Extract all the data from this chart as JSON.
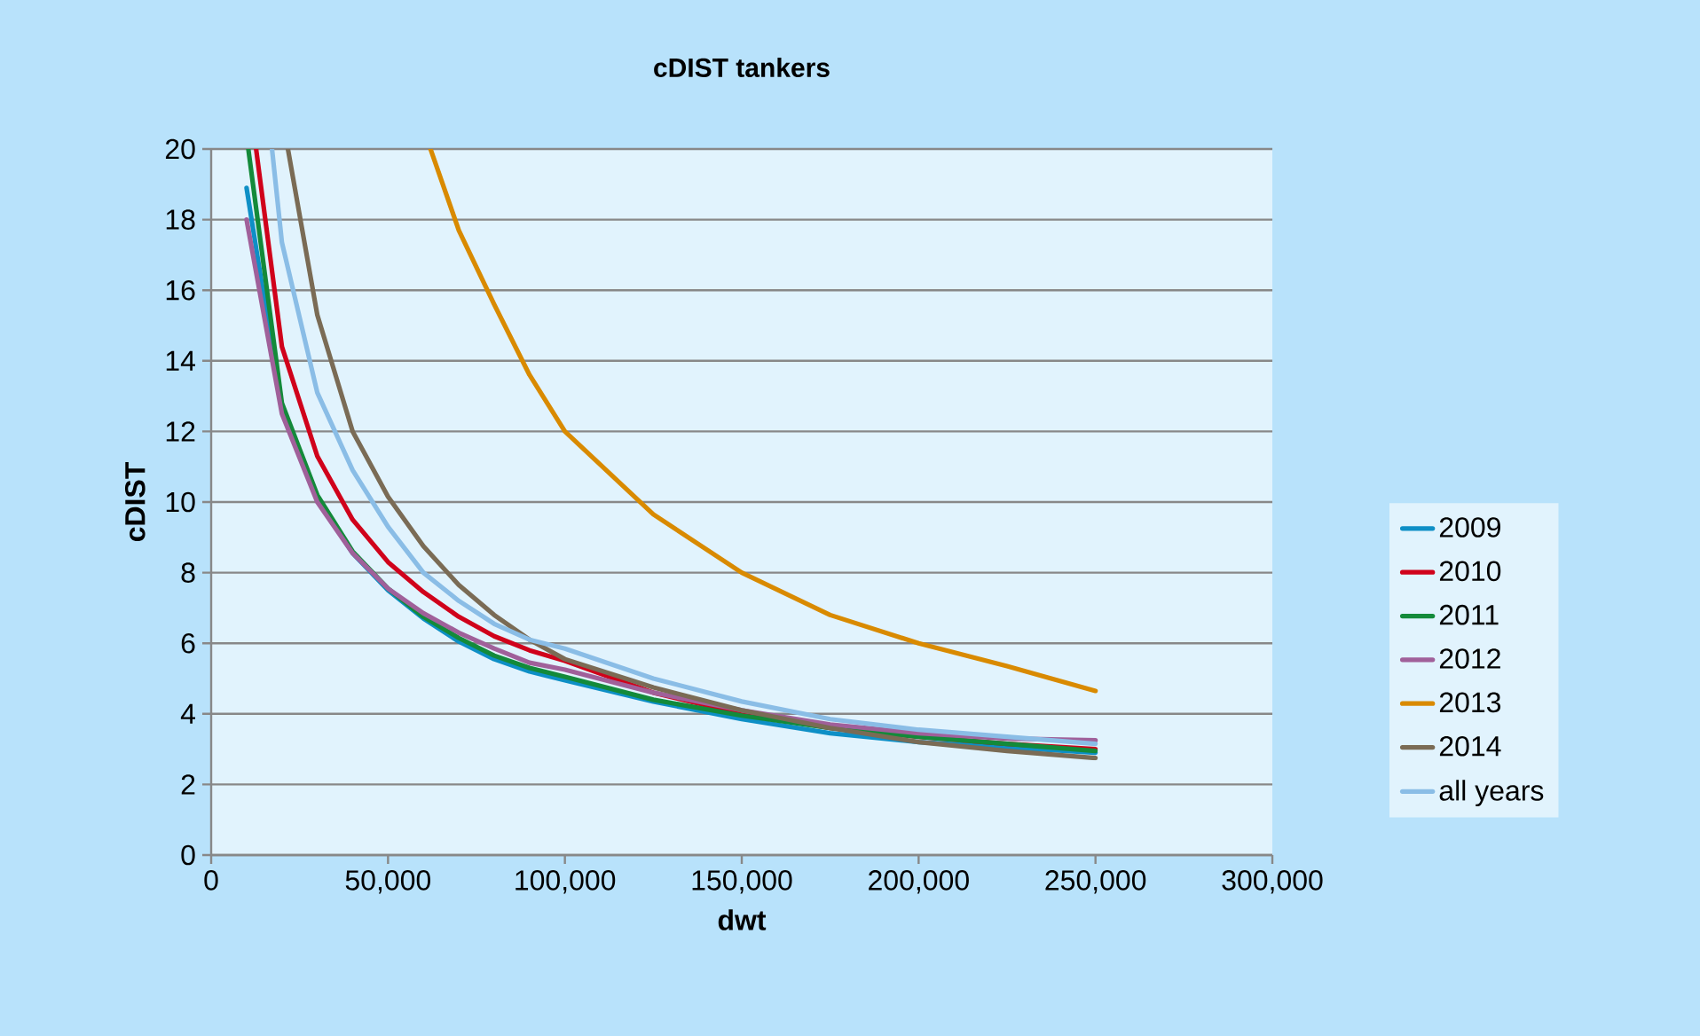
{
  "chart_data": {
    "type": "line",
    "title": "cDIST tankers",
    "xlabel": "dwt",
    "ylabel": "cDIST",
    "xlim": [
      0,
      300000
    ],
    "ylim": [
      0,
      20
    ],
    "xticks": [
      0,
      {
        "value": 50000,
        "label": "50,000"
      },
      {
        "value": 100000,
        "label": "100,000"
      },
      {
        "value": 150000,
        "label": "150,000"
      },
      {
        "value": 200000,
        "label": "200,000"
      },
      {
        "value": 250000,
        "label": "250,000"
      },
      {
        "value": 300000,
        "label": "300,000"
      }
    ],
    "yticks": [
      0,
      2,
      4,
      6,
      8,
      10,
      12,
      14,
      16,
      18,
      20
    ],
    "grid": "y",
    "legend": "right",
    "marker": "none",
    "line_style": "solid",
    "series": [
      {
        "name": "2009",
        "color": "#0e8fc6",
        "x": [
          10000,
          20000,
          30000,
          40000,
          50000,
          60000,
          70000,
          80000,
          90000,
          100000,
          125000,
          150000,
          175000,
          200000,
          225000,
          250000
        ],
        "values": [
          18.9,
          12.6,
          10.1,
          8.55,
          7.5,
          6.7,
          6.05,
          5.55,
          5.2,
          4.95,
          4.35,
          3.85,
          3.45,
          3.2,
          3.05,
          2.9
        ]
      },
      {
        "name": "2010",
        "color": "#d0021b",
        "x": [
          12700,
          20000,
          30000,
          40000,
          50000,
          60000,
          70000,
          80000,
          90000,
          100000,
          125000,
          150000,
          175000,
          200000,
          225000,
          250000
        ],
        "values": [
          20,
          14.4,
          11.3,
          9.5,
          8.3,
          7.45,
          6.75,
          6.2,
          5.8,
          5.5,
          4.6,
          4.0,
          3.6,
          3.35,
          3.15,
          3.0
        ]
      },
      {
        "name": "2011",
        "color": "#138a3a",
        "x": [
          10500,
          20000,
          30000,
          40000,
          50000,
          60000,
          70000,
          80000,
          90000,
          100000,
          125000,
          150000,
          175000,
          200000,
          225000,
          250000
        ],
        "values": [
          20,
          12.8,
          10.2,
          8.6,
          7.55,
          6.75,
          6.15,
          5.65,
          5.3,
          5.05,
          4.4,
          3.95,
          3.6,
          3.35,
          3.15,
          2.95
        ]
      },
      {
        "name": "2012",
        "color": "#a0609a",
        "x": [
          10000,
          20000,
          30000,
          40000,
          50000,
          60000,
          70000,
          80000,
          90000,
          100000,
          125000,
          150000,
          175000,
          200000,
          225000,
          250000
        ],
        "values": [
          18.0,
          12.5,
          10.0,
          8.55,
          7.55,
          6.85,
          6.3,
          5.85,
          5.45,
          5.25,
          4.6,
          4.1,
          3.7,
          3.45,
          3.3,
          3.25
        ]
      },
      {
        "name": "2013",
        "color": "#d98a00",
        "x": [
          62000,
          70000,
          80000,
          90000,
          100000,
          125000,
          150000,
          175000,
          200000,
          225000,
          250000
        ],
        "values": [
          20,
          17.7,
          15.6,
          13.6,
          12.0,
          9.65,
          8.0,
          6.8,
          6.0,
          5.35,
          4.65
        ]
      },
      {
        "name": "2014",
        "color": "#7a6b55",
        "x": [
          21700,
          30000,
          40000,
          50000,
          60000,
          70000,
          80000,
          90000,
          100000,
          125000,
          150000,
          175000,
          200000,
          225000,
          250000
        ],
        "values": [
          20,
          15.3,
          12.0,
          10.15,
          8.75,
          7.65,
          6.8,
          6.1,
          5.55,
          4.75,
          4.1,
          3.6,
          3.2,
          2.95,
          2.75
        ]
      },
      {
        "name": "all years",
        "color": "#8abde6",
        "x": [
          17200,
          20000,
          30000,
          40000,
          50000,
          60000,
          70000,
          80000,
          90000,
          100000,
          125000,
          150000,
          175000,
          200000,
          225000,
          250000
        ],
        "values": [
          20,
          17.35,
          13.1,
          10.9,
          9.3,
          8.0,
          7.2,
          6.55,
          6.1,
          5.85,
          5.0,
          4.35,
          3.85,
          3.55,
          3.35,
          3.15
        ]
      }
    ]
  }
}
